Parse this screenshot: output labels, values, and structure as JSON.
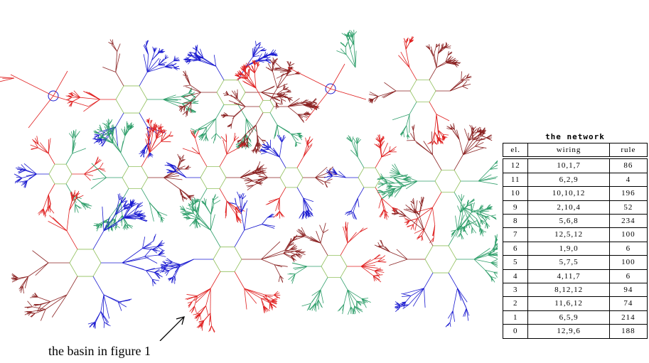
{
  "table": {
    "title": "the network",
    "header": [
      "el.",
      "wiring",
      "rule"
    ],
    "rows": [
      [
        12,
        "10,1,7",
        86
      ],
      [
        11,
        "6,2,9",
        4
      ],
      [
        10,
        "10,10,12",
        196
      ],
      [
        9,
        "2,10,4",
        52
      ],
      [
        8,
        "5,6,8",
        234
      ],
      [
        7,
        "12,5,12",
        100
      ],
      [
        6,
        "1,9,0",
        6
      ],
      [
        5,
        "5,7,5",
        100
      ],
      [
        4,
        "4,11,7",
        6
      ],
      [
        3,
        "8,12,12",
        94
      ],
      [
        2,
        "11,6,12",
        74
      ],
      [
        1,
        "6,5,9",
        214
      ],
      [
        0,
        "12,9,6",
        188
      ]
    ]
  },
  "caption": "the basin in figure 1"
}
